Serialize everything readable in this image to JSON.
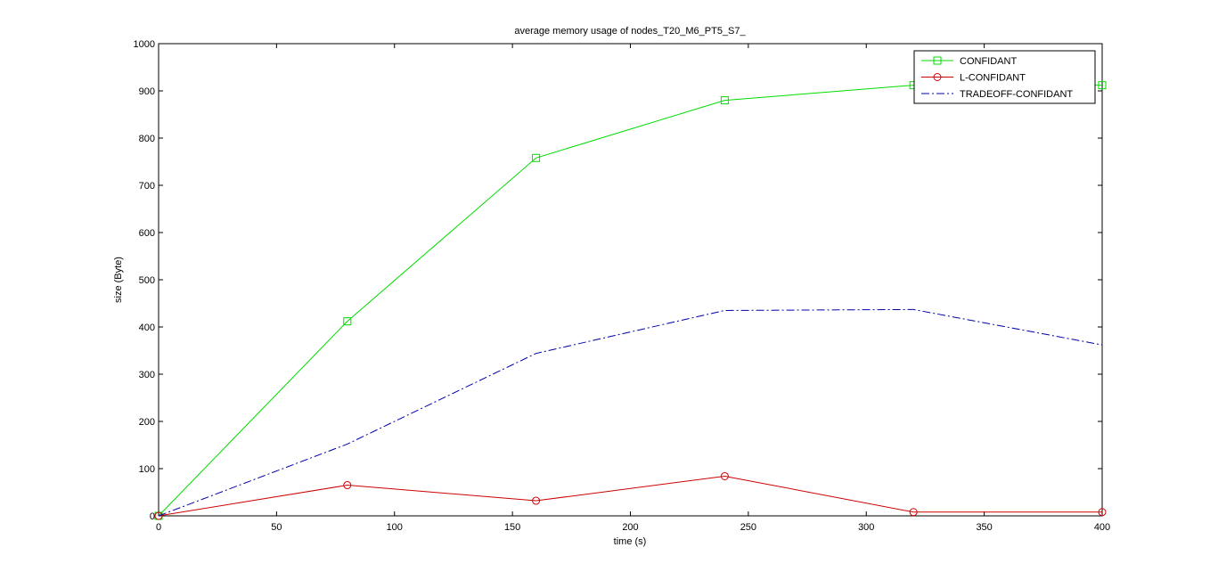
{
  "chart_data": {
    "type": "line",
    "title": "average memory usage of nodes_T20_M6_PT5_S7_",
    "xlabel": "time (s)",
    "ylabel": "size (Byte)",
    "xlim": [
      0,
      400
    ],
    "ylim": [
      0,
      1000
    ],
    "xticks": [
      0,
      50,
      100,
      150,
      200,
      250,
      300,
      350,
      400
    ],
    "yticks": [
      0,
      100,
      200,
      300,
      400,
      500,
      600,
      700,
      800,
      900,
      1000
    ],
    "grid": false,
    "legend_position": "top-right",
    "x": [
      0,
      80,
      160,
      240,
      320,
      400
    ],
    "series": [
      {
        "name": "CONFIDANT",
        "values": [
          0,
          412,
          758,
          880,
          912,
          912
        ],
        "color": "#00dd00",
        "marker": "square",
        "line": "solid"
      },
      {
        "name": "L-CONFIDANT",
        "values": [
          0,
          65,
          32,
          84,
          8,
          8
        ],
        "color": "#cc0000",
        "marker": "circle",
        "line": "solid"
      },
      {
        "name": "TRADEOFF-CONFIDANT",
        "values": [
          0,
          152,
          344,
          435,
          437,
          362
        ],
        "color": "#0000aa",
        "marker": "none",
        "line": "dashdot"
      }
    ]
  }
}
